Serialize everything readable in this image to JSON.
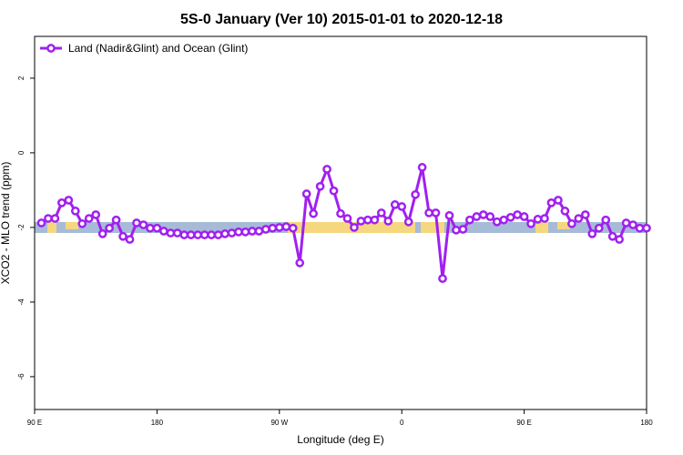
{
  "chart_data": {
    "type": "line",
    "title": "5S-0 January (Ver 10)   2015-01-01 to 2020-12-18",
    "x_label": "Longitude (deg E)",
    "y_label": "XCO2 - MLO trend (ppm)",
    "xlim": [
      90,
      540
    ],
    "ylim": [
      -6.88,
      3.12
    ],
    "xticks": [
      {
        "value": 90,
        "label": "90 E"
      },
      {
        "value": 180,
        "label": "180"
      },
      {
        "value": 270,
        "label": "90 W"
      },
      {
        "value": 360,
        "label": "0"
      },
      {
        "value": 450,
        "label": "90 E"
      },
      {
        "value": 540,
        "label": "180"
      }
    ],
    "yticks": [
      -6,
      -4,
      -2,
      0,
      2
    ],
    "legend": "top-left",
    "x": [
      95,
      100,
      105,
      110,
      115,
      120,
      125,
      130,
      135,
      140,
      145,
      150,
      155,
      160,
      165,
      170,
      175,
      180,
      185,
      190,
      195,
      200,
      205,
      210,
      215,
      220,
      225,
      230,
      235,
      240,
      245,
      250,
      255,
      260,
      265,
      270,
      275,
      280,
      285,
      290,
      295,
      300,
      305,
      310,
      315,
      320,
      325,
      330,
      335,
      340,
      345,
      350,
      355,
      360,
      365,
      370,
      375,
      380,
      385,
      390,
      395,
      400,
      405,
      410,
      415,
      420,
      425,
      430,
      435,
      440,
      445,
      450,
      455,
      460,
      465,
      470,
      475,
      480,
      485,
      490,
      495,
      500,
      505,
      510,
      515,
      520,
      525,
      530,
      535,
      540
    ],
    "series": [
      {
        "name": "Land (Nadir&Glint) and Ocean (Glint)",
        "color": "#a020f0",
        "values": [
          -1.88,
          -1.76,
          -1.76,
          -1.34,
          -1.27,
          -1.56,
          -1.9,
          -1.76,
          -1.66,
          -2.17,
          -2.02,
          -1.8,
          -2.24,
          -2.32,
          -1.88,
          -1.93,
          -2.02,
          -2.02,
          -2.1,
          -2.15,
          -2.15,
          -2.2,
          -2.2,
          -2.2,
          -2.2,
          -2.2,
          -2.2,
          -2.17,
          -2.15,
          -2.12,
          -2.12,
          -2.1,
          -2.1,
          -2.05,
          -2.02,
          -2.0,
          -1.98,
          -2.02,
          -2.95,
          -1.1,
          -1.63,
          -0.9,
          -0.44,
          -1.02,
          -1.63,
          -1.76,
          -2.0,
          -1.83,
          -1.8,
          -1.8,
          -1.61,
          -1.83,
          -1.39,
          -1.44,
          -1.85,
          -1.12,
          -0.39,
          -1.61,
          -1.61,
          -3.37,
          -1.68,
          -2.07,
          -2.05,
          -1.8,
          -1.71,
          -1.66,
          -1.71,
          -1.85,
          -1.8,
          -1.73,
          -1.66,
          -1.71,
          -1.9,
          -1.78,
          -1.76,
          -1.34,
          -1.27,
          -1.56,
          -1.9,
          -1.76,
          -1.66,
          -2.17,
          -2.02,
          -1.8,
          -2.24,
          -2.32,
          -1.88,
          -1.93,
          -2.02,
          -2.02
        ]
      }
    ]
  }
}
